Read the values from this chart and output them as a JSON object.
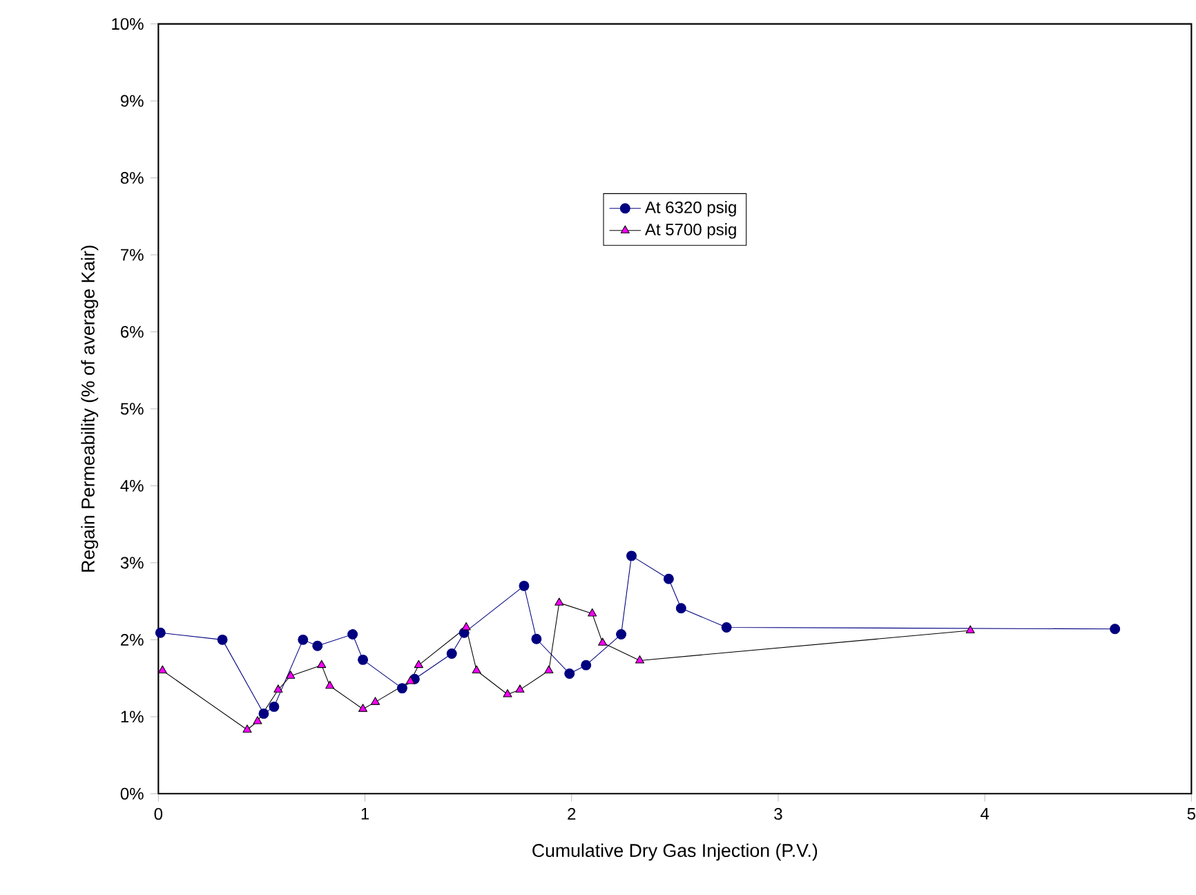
{
  "chart_data": {
    "type": "line",
    "xlabel": "Cumulative Dry Gas Injection (P.V.)",
    "ylabel": "Regain Permeability (% of average Kair)",
    "xlim": [
      0,
      5
    ],
    "xticks": [
      0,
      1,
      2,
      3,
      4,
      5
    ],
    "ylim": [
      0,
      10
    ],
    "yticks": [
      {
        "value": 0,
        "label": "0%"
      },
      {
        "value": 1,
        "label": "1%"
      },
      {
        "value": 2,
        "label": "2%"
      },
      {
        "value": 3,
        "label": "3%"
      },
      {
        "value": 4,
        "label": "4%"
      },
      {
        "value": 5,
        "label": "5%"
      },
      {
        "value": 6,
        "label": "6%"
      },
      {
        "value": 7,
        "label": "7%"
      },
      {
        "value": 8,
        "label": "8%"
      },
      {
        "value": 9,
        "label": "9%"
      },
      {
        "value": 10,
        "label": "10%"
      }
    ],
    "legend": "top",
    "grid": false,
    "series": [
      {
        "name": "At 6320 psig",
        "color": "#000080",
        "marker": "circle",
        "x": [
          0.01,
          0.31,
          0.51,
          0.56,
          0.7,
          0.77,
          0.94,
          0.99,
          1.18,
          1.24,
          1.42,
          1.48,
          1.77,
          1.83,
          1.99,
          2.07,
          2.24,
          2.29,
          2.47,
          2.53,
          2.75,
          4.63
        ],
        "values": [
          2.09,
          2.0,
          1.04,
          1.13,
          2.0,
          1.92,
          2.07,
          1.74,
          1.37,
          1.49,
          1.82,
          2.09,
          2.7,
          2.01,
          1.56,
          1.67,
          2.07,
          3.09,
          2.79,
          2.41,
          2.16,
          2.14
        ]
      },
      {
        "name": "At 5700 psig",
        "color": "#ff00ff",
        "marker": "triangle",
        "x": [
          0.02,
          0.43,
          0.48,
          0.58,
          0.64,
          0.79,
          0.83,
          0.99,
          1.05,
          1.22,
          1.26,
          1.49,
          1.54,
          1.69,
          1.75,
          1.89,
          1.94,
          2.1,
          2.15,
          2.33,
          3.93
        ],
        "values": [
          1.6,
          0.83,
          0.94,
          1.35,
          1.53,
          1.67,
          1.4,
          1.1,
          1.19,
          1.46,
          1.67,
          2.16,
          1.6,
          1.29,
          1.35,
          1.6,
          2.48,
          2.34,
          1.96,
          1.73,
          2.12
        ]
      }
    ]
  }
}
